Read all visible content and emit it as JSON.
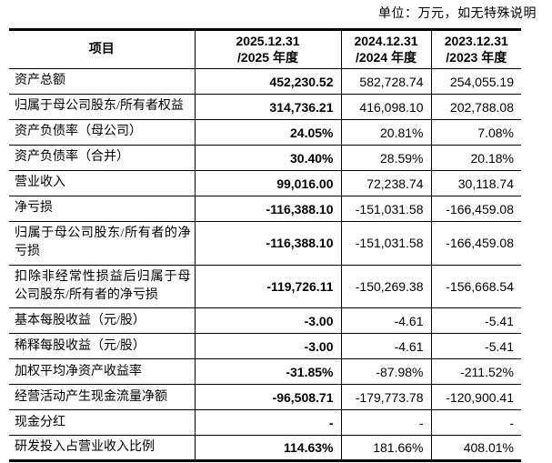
{
  "unit_note": "单位：万元，如无特殊说明",
  "colors": {
    "text": "#000000",
    "border": "#000000",
    "background": "#ffffff"
  },
  "table": {
    "header": {
      "item_label": "项目",
      "periods": [
        {
          "line1": "2025.12.31",
          "line2": "/2025 年度"
        },
        {
          "line1": "2024.12.31",
          "line2": "/2024 年度"
        },
        {
          "line1": "2023.12.31",
          "line2": "/2023 年度"
        }
      ]
    },
    "rows": [
      {
        "label": "资产总额",
        "values": [
          "452,230.52",
          "582,728.74",
          "254,055.19"
        ]
      },
      {
        "label": "归属于母公司股东/所有者权益",
        "values": [
          "314,736.21",
          "416,098.10",
          "202,788.08"
        ]
      },
      {
        "label": "资产负债率（母公司）",
        "values": [
          "24.05%",
          "20.81%",
          "7.08%"
        ]
      },
      {
        "label": "资产负债率（合并）",
        "values": [
          "30.40%",
          "28.59%",
          "20.18%"
        ]
      },
      {
        "label": "营业收入",
        "values": [
          "99,016.00",
          "72,238.74",
          "30,118.74"
        ]
      },
      {
        "label": "净亏损",
        "values": [
          "-116,388.10",
          "-151,031.58",
          "-166,459.08"
        ]
      },
      {
        "label": "归属于母公司股东/所有者的净亏损",
        "values": [
          "-116,388.10",
          "-151,031.58",
          "-166,459.08"
        ]
      },
      {
        "label": "扣除非经常性损益后归属于母公司股东/所有者的净亏损",
        "values": [
          "-119,726.11",
          "-150,269.38",
          "-156,668.54"
        ]
      },
      {
        "label": "基本每股收益（元/股）",
        "values": [
          "-3.00",
          "-4.61",
          "-5.41"
        ]
      },
      {
        "label": "稀释每股收益（元/股）",
        "values": [
          "-3.00",
          "-4.61",
          "-5.41"
        ]
      },
      {
        "label": "加权平均净资产收益率",
        "values": [
          "-31.85%",
          "-87.98%",
          "-211.52%"
        ]
      },
      {
        "label": "经营活动产生现金流量净额",
        "values": [
          "-96,508.71",
          "-179,773.78",
          "-120,900.41"
        ]
      },
      {
        "label": "现金分红",
        "values": [
          "-",
          "-",
          "-"
        ]
      },
      {
        "label": "研发投入占营业收入比例",
        "values": [
          "114.63%",
          "181.66%",
          "408.01%"
        ]
      }
    ]
  }
}
